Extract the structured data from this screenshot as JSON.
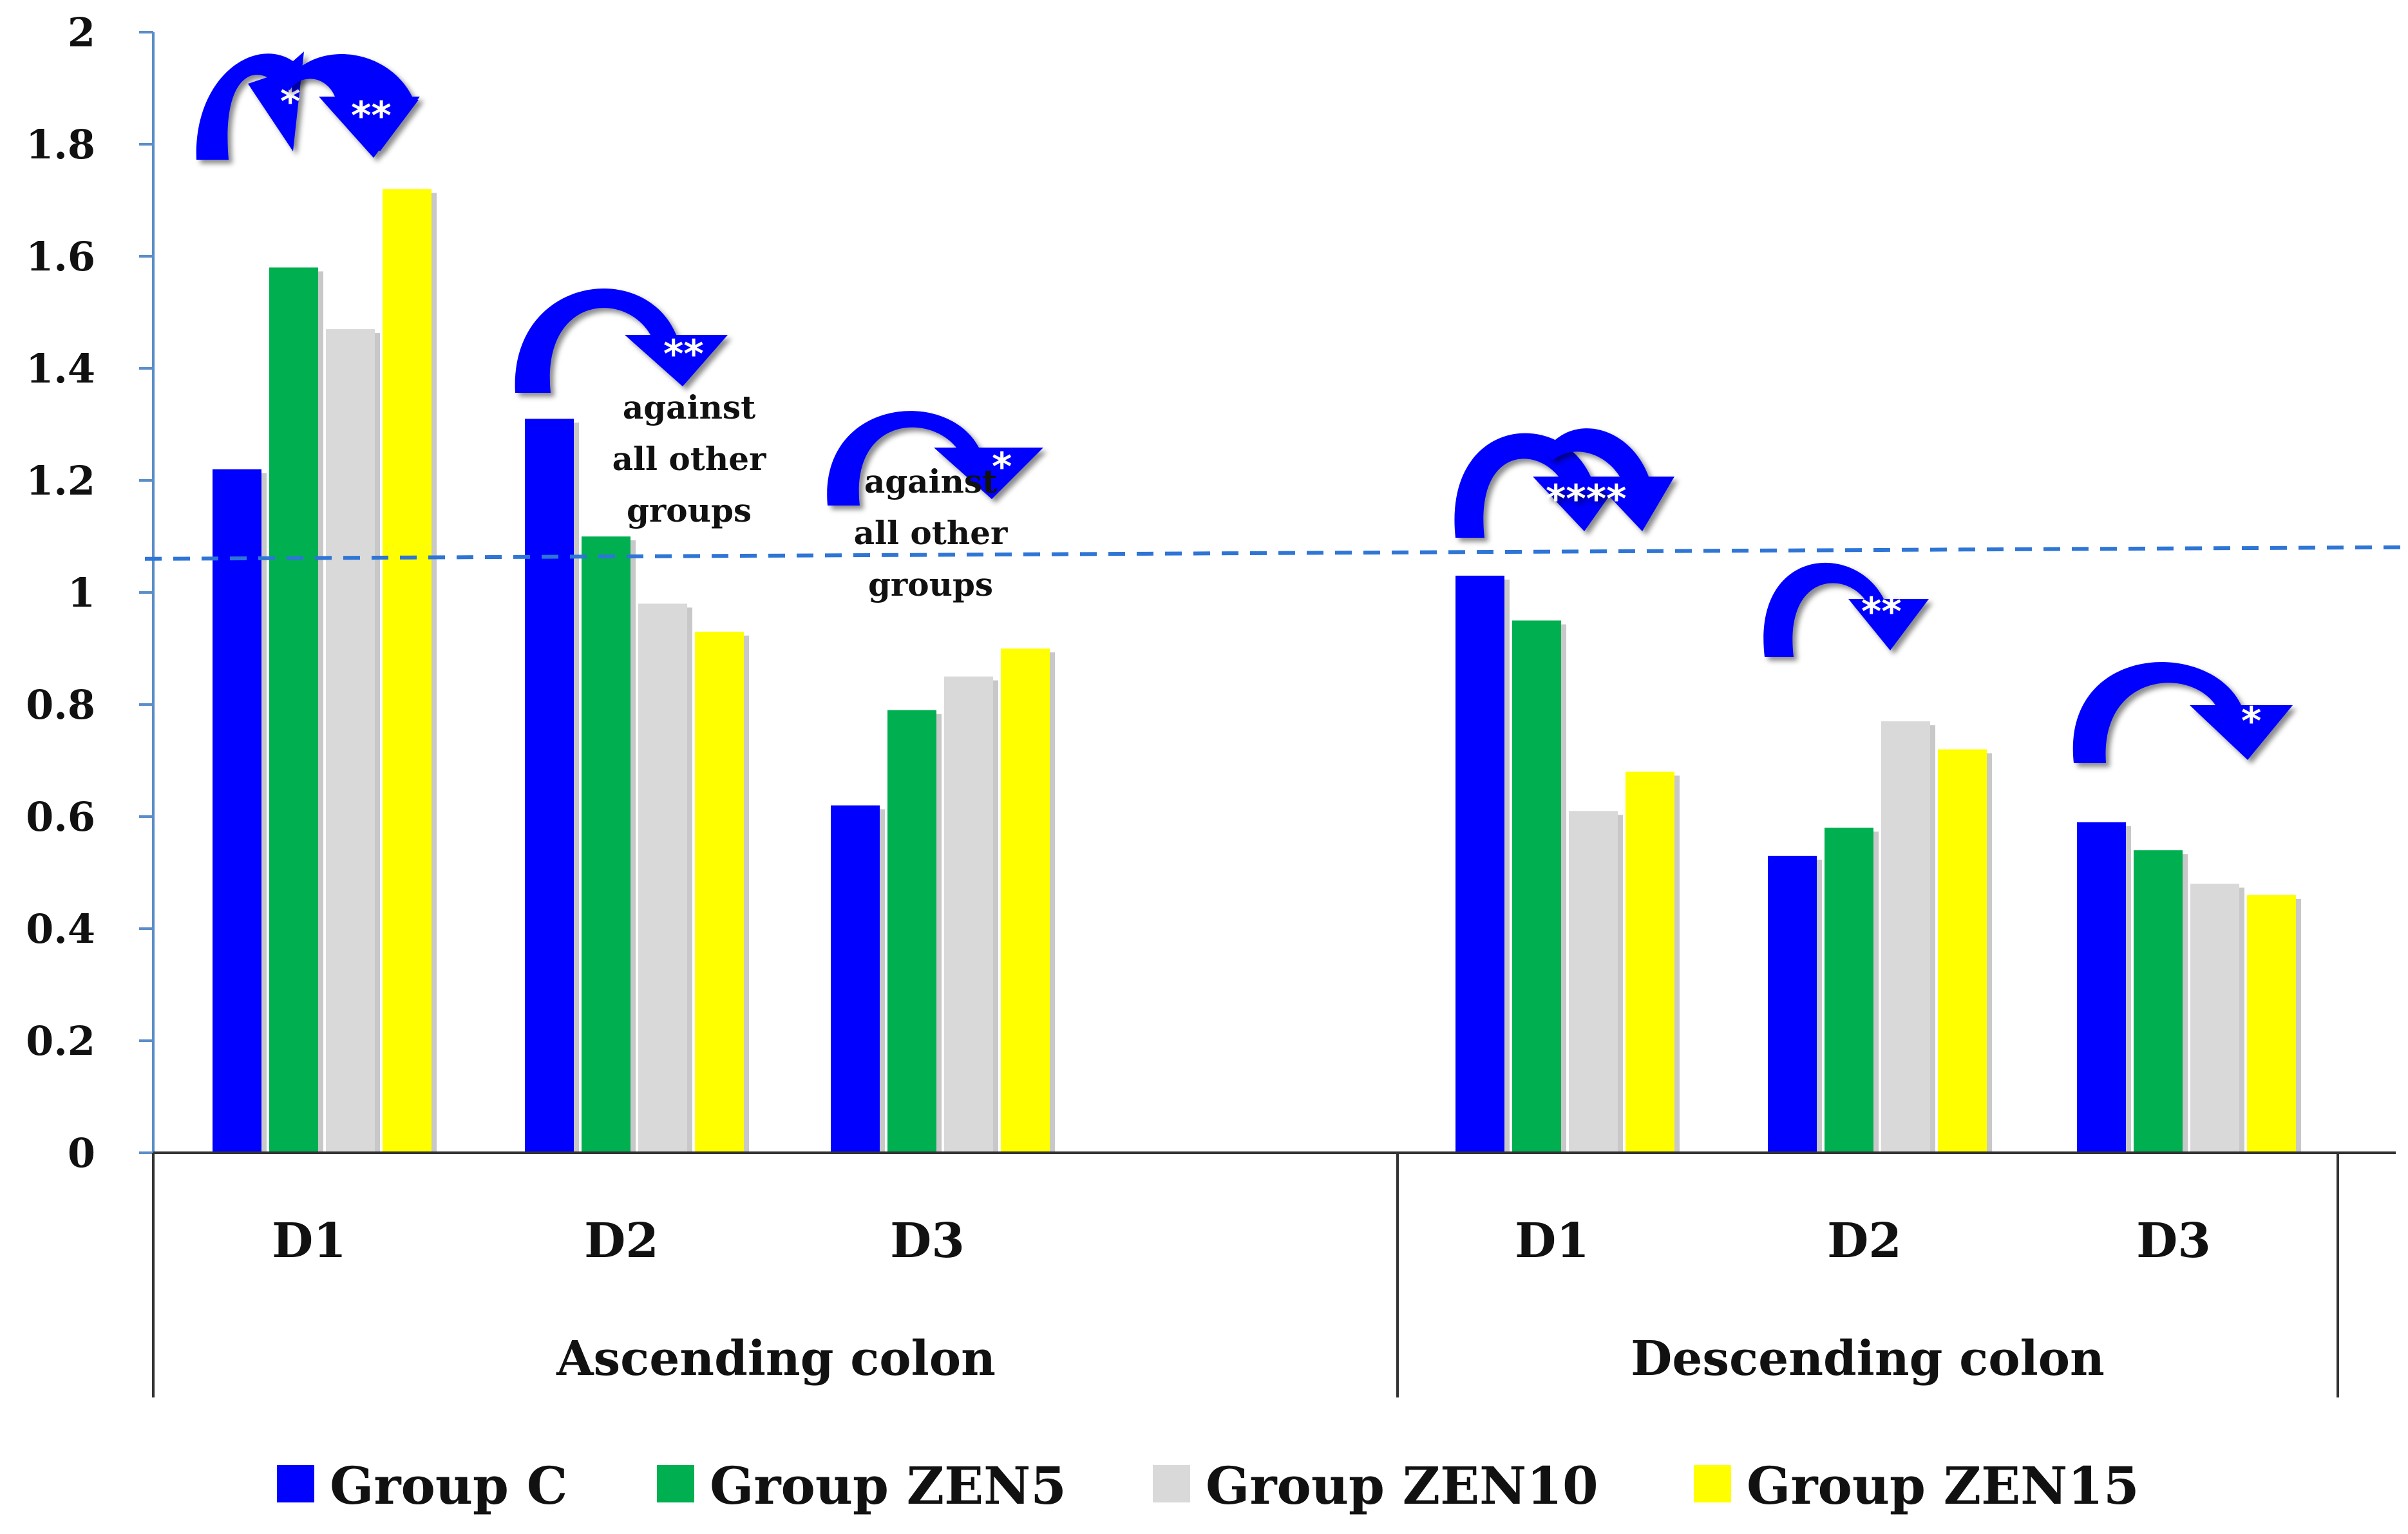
{
  "chart_data": {
    "type": "bar",
    "title": "",
    "xlabel": "",
    "ylabel": "",
    "ylim": [
      0,
      2
    ],
    "yticks": [
      0,
      0.2,
      0.4,
      0.6,
      0.8,
      1,
      1.2,
      1.4,
      1.6,
      1.8,
      2
    ],
    "ytick_labels": [
      "0",
      "0.2",
      "0.4",
      "0.6",
      "0.8",
      "1",
      "1.2",
      "1.4",
      "1.6",
      "1.8",
      "2"
    ],
    "groups": [
      "Ascending colon",
      "Descending colon"
    ],
    "categories": [
      "D1",
      "D2",
      "D3",
      "D1",
      "D2",
      "D3"
    ],
    "series": [
      {
        "name": "Group C",
        "color": "#0000FF",
        "values": [
          1.22,
          1.31,
          0.62,
          1.03,
          0.53,
          0.59
        ]
      },
      {
        "name": "Group ZEN5",
        "color": "#00B050",
        "values": [
          1.58,
          1.1,
          0.79,
          0.95,
          0.58,
          0.54
        ]
      },
      {
        "name": "Group ZEN10",
        "color": "#D9D9D9",
        "values": [
          1.47,
          0.98,
          0.85,
          0.61,
          0.77,
          0.48
        ]
      },
      {
        "name": "Group ZEN15",
        "color": "#FFFF00",
        "values": [
          1.72,
          0.93,
          0.9,
          0.68,
          0.72,
          0.46
        ]
      }
    ],
    "reference_line": {
      "value": 1.06,
      "style": "dashed",
      "color": "#2E75D6"
    },
    "annotations": {
      "star1": "*",
      "star2": "**",
      "star3": "**",
      "against_lines_1": [
        "against",
        "all other",
        "groups"
      ],
      "star4": "*",
      "against_lines_2": [
        "against",
        "all other",
        "groups"
      ],
      "star5": "****",
      "star6": "**",
      "star7": "*"
    },
    "legend_position": "bottom"
  }
}
